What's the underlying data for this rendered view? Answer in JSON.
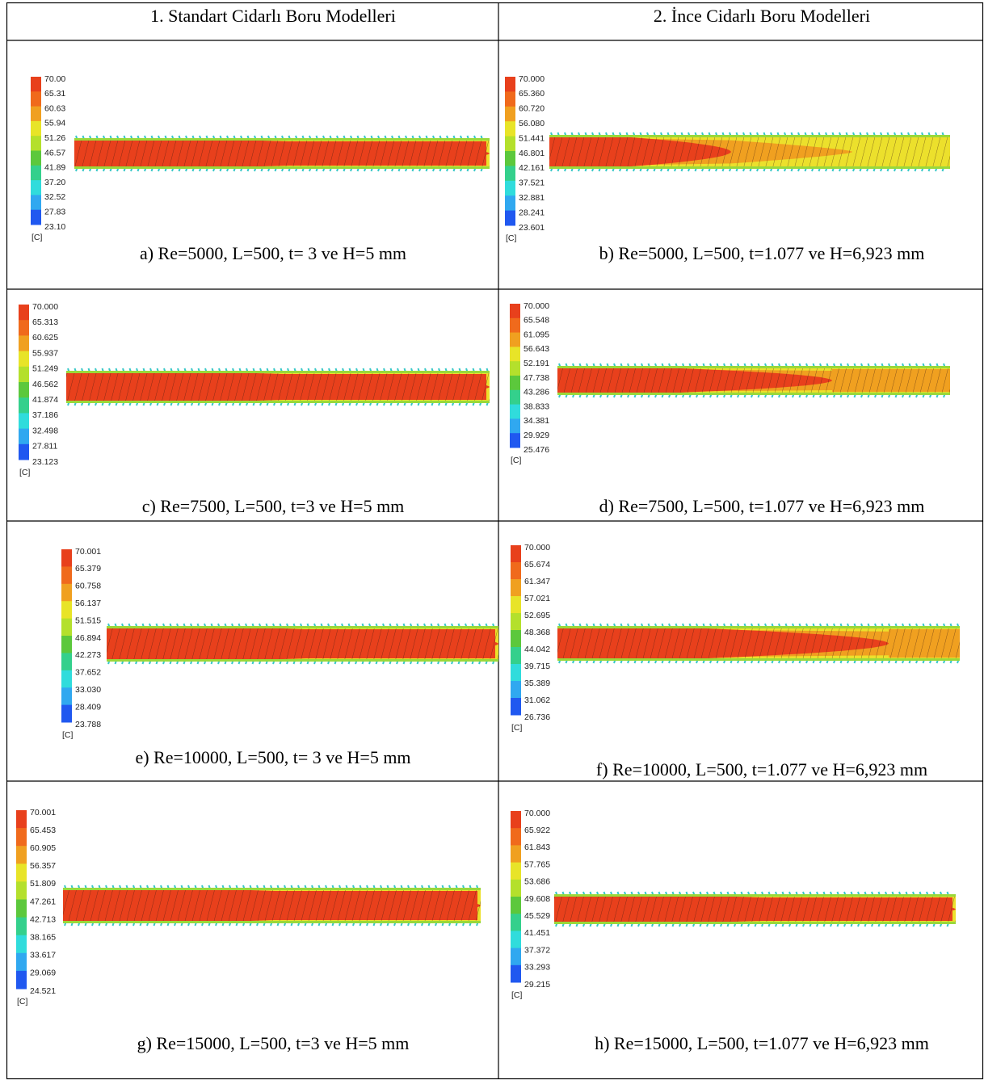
{
  "table": {
    "header": [
      "1. Standart Cidarlı Boru Modelleri",
      "2. İnce Cidarlı Boru Modelleri"
    ],
    "cells": [
      {
        "caption": "a) Re=5000, L=500, t= 3 ve H=5 mm",
        "legend": {
          "labels": [
            "70.00",
            "65.31",
            "60.63",
            "55.94",
            "51.26",
            "46.57",
            "41.89",
            "37.20",
            "32.52",
            "27.83",
            "23.10"
          ],
          "unit": "[C]"
        }
      },
      {
        "caption": "b) Re=5000, L=500, t=1.077 ve H=6,923 mm",
        "legend": {
          "labels": [
            "70.000",
            "65.360",
            "60.720",
            "56.080",
            "51.441",
            "46.801",
            "42.161",
            "37.521",
            "32.881",
            "28.241",
            "23.601"
          ],
          "unit": "[C]"
        }
      },
      {
        "caption": "c) Re=7500, L=500, t=3 ve H=5 mm",
        "legend": {
          "labels": [
            "70.000",
            "65.313",
            "60.625",
            "55.937",
            "51.249",
            "46.562",
            "41.874",
            "37.186",
            "32.498",
            "27.811",
            "23.123"
          ],
          "unit": "[C]"
        }
      },
      {
        "caption": "d) Re=7500, L=500, t=1.077 ve H=6,923 mm",
        "legend": {
          "labels": [
            "70.000",
            "65.548",
            "61.095",
            "56.643",
            "52.191",
            "47.738",
            "43.286",
            "38.833",
            "34.381",
            "29.929",
            "25.476"
          ],
          "unit": "[C]"
        }
      },
      {
        "caption": "e) Re=10000, L=500, t= 3 ve H=5 mm",
        "legend": {
          "labels": [
            "70.001",
            "65.379",
            "60.758",
            "56.137",
            "51.515",
            "46.894",
            "42.273",
            "37.652",
            "33.030",
            "28.409",
            "23.788"
          ],
          "unit": "[C]"
        }
      },
      {
        "caption": "f) Re=10000, L=500, t=1.077 ve H=6,923 mm",
        "legend": {
          "labels": [
            "70.000",
            "65.674",
            "61.347",
            "57.021",
            "52.695",
            "48.368",
            "44.042",
            "39.715",
            "35.389",
            "31.062",
            "26.736"
          ],
          "unit": "[C]"
        }
      },
      {
        "caption": "g) Re=15000, L=500, t=3 ve H=5 mm",
        "legend": {
          "labels": [
            "70.001",
            "65.453",
            "60.905",
            "56.357",
            "51.809",
            "47.261",
            "42.713",
            "38.165",
            "33.617",
            "29.069",
            "24.521"
          ],
          "unit": "[C]"
        }
      },
      {
        "caption": "h) Re=15000, L=500, t=1.077 ve H=6,923 mm",
        "legend": {
          "labels": [
            "70.000",
            "65.922",
            "61.843",
            "57.765",
            "53.686",
            "49.608",
            "45.529",
            "41.451",
            "37.372",
            "33.293",
            "29.215"
          ],
          "unit": "[C]"
        }
      }
    ]
  }
}
